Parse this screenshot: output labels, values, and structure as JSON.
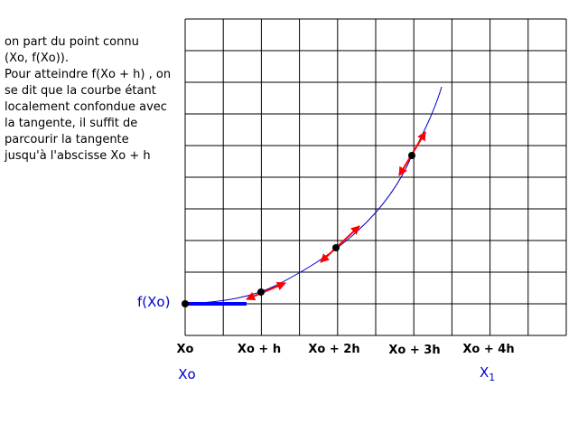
{
  "explanation": [
    "on part du point connu",
    "(Xo, f(Xo)).",
    "Pour atteindre f(Xo + h) , on",
    "se dit que la courbe étant",
    "localement confondue avec",
    "la tangente, il suffit de",
    "parcourir la tangente",
    "jusqu'à l'abscisse Xo + h"
  ],
  "y_label": "f(Xo)",
  "x_labels": [
    "Xo",
    "Xo + h",
    "Xo + 2h",
    "Xo + 3h",
    "Xo + 4h"
  ],
  "bounds": {
    "start": "Xo",
    "end": "X",
    "end_index": "1"
  }
}
